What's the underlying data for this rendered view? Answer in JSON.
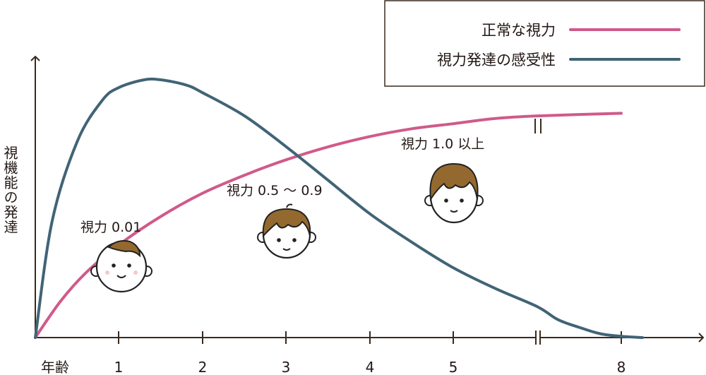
{
  "chart_data": {
    "type": "line",
    "title": "",
    "xlabel": "年齢",
    "ylabel": "視機能の発達",
    "x_ticks": [
      "1",
      "2",
      "3",
      "4",
      "5",
      "8"
    ],
    "x_break": "5-8",
    "xlim": [
      0,
      8.8
    ],
    "ylim": [
      0,
      1
    ],
    "grid": false,
    "legend_position": "top-right",
    "legend": [
      "正常な視力",
      "視力発達の感受性"
    ],
    "colors": {
      "normal": "#d05a89",
      "sensitivity": "#416476",
      "axis": "#3a2a1e"
    },
    "series": [
      {
        "name": "正常な視力",
        "x": [
          0,
          0.3,
          0.6,
          1.0,
          1.5,
          2.0,
          2.5,
          3.0,
          3.5,
          4.0,
          4.5,
          5.0,
          5.5,
          6.0,
          8.0
        ],
        "y": [
          0.0,
          0.14,
          0.25,
          0.36,
          0.47,
          0.56,
          0.63,
          0.69,
          0.74,
          0.78,
          0.81,
          0.83,
          0.85,
          0.86,
          0.87
        ]
      },
      {
        "name": "視力発達の感受性",
        "x": [
          0,
          0.2,
          0.5,
          0.8,
          1.0,
          1.3,
          1.5,
          1.8,
          2.0,
          2.5,
          3.0,
          3.5,
          4.0,
          4.5,
          5.0,
          5.5,
          6.0,
          6.5,
          7.0,
          7.5,
          8.0,
          8.5
        ],
        "y": [
          0.0,
          0.45,
          0.76,
          0.92,
          0.97,
          1.0,
          1.0,
          0.98,
          0.95,
          0.86,
          0.74,
          0.61,
          0.48,
          0.37,
          0.27,
          0.19,
          0.12,
          0.07,
          0.04,
          0.015,
          0.005,
          0.0
        ]
      }
    ],
    "annotations": [
      {
        "text": "視力 0.01",
        "x": 0.9
      },
      {
        "text": "視力 0.5 〜 0.9",
        "x": 2.9
      },
      {
        "text": "視力 1.0 以上",
        "x": 5.0
      }
    ]
  },
  "icons": [
    "baby-face-icon",
    "child-face-icon",
    "child-face-icon"
  ]
}
